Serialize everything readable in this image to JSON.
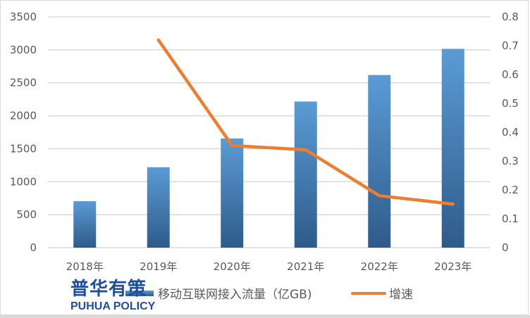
{
  "chart_data": {
    "type": "bar+line",
    "title": "",
    "categories": [
      "2018年",
      "2019年",
      "2020年",
      "2021年",
      "2022年",
      "2023年"
    ],
    "series": [
      {
        "name": "移动互联网接入流量（亿GB)",
        "type": "bar",
        "axis": "left",
        "values": [
          705,
          1220,
          1656,
          2216,
          2618,
          3015
        ],
        "color": "#5b9bd5"
      },
      {
        "name": "增速",
        "type": "line",
        "axis": "right",
        "values": [
          null,
          0.72,
          0.354,
          0.339,
          0.18,
          0.151
        ],
        "color": "#ed7d31"
      }
    ],
    "left_axis": {
      "ylim": [
        0,
        3500
      ],
      "ticks": [
        "0",
        "500",
        "1000",
        "1500",
        "2000",
        "2500",
        "3000",
        "3500"
      ]
    },
    "right_axis": {
      "ylim": [
        0,
        0.8
      ],
      "ticks": [
        "0",
        "0.1",
        "0.2",
        "0.3",
        "0.4",
        "0.5",
        "0.6",
        "0.7",
        "0.8"
      ]
    },
    "xlabel": "",
    "ylabel": "",
    "grid": true,
    "legend_position": "bottom"
  },
  "legend": {
    "bar_label": "移动互联网接入流量（亿GB)",
    "line_label": "增速"
  },
  "watermark": {
    "chinese": "普华有策",
    "english": "PUHUA POLICY"
  }
}
